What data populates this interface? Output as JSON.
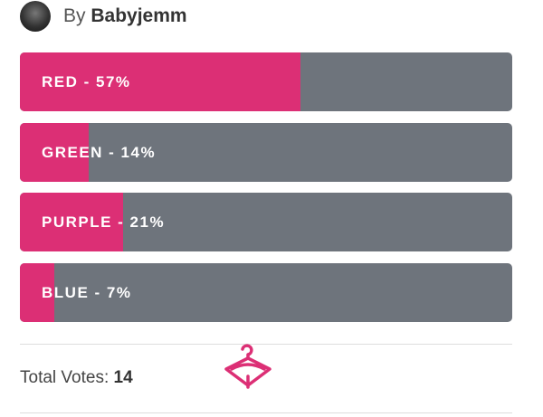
{
  "post": {
    "author_prefix": "By",
    "author": "Babyjemm"
  },
  "poll": {
    "options": [
      {
        "label": "RED - 57%",
        "percent": 57
      },
      {
        "label": "GREEN - 14%",
        "percent": 14
      },
      {
        "label": "PURPLE - 21%",
        "percent": 21
      },
      {
        "label": "BLUE - 7%",
        "percent": 7
      }
    ],
    "bar_color": "#dc2f75",
    "track_color": "#6e747c",
    "total_votes_label": "Total Votes:",
    "total_votes": 14
  }
}
